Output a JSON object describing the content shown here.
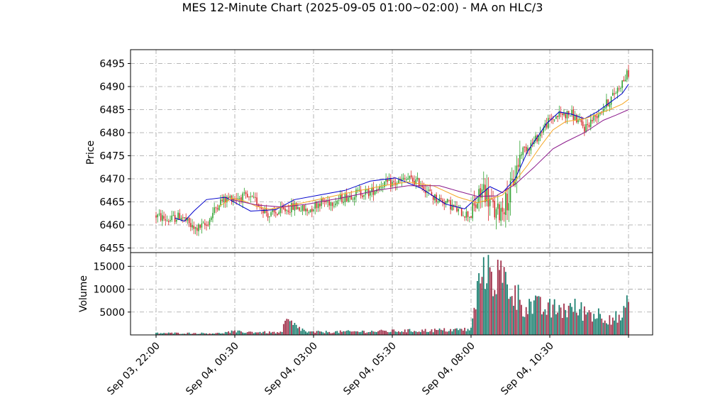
{
  "chart_data": {
    "type": "candlestick",
    "title": "MES 12-Minute Chart (2025-09-05 01:00~02:00) - MA on HLC/3",
    "colors": {
      "up": "#2ca02c",
      "down": "#d62728",
      "volume_up": "#1a7f6f",
      "volume_down": "#a0304a",
      "ma_fast": "#0000cc",
      "ma_mid": "#f5a623",
      "ma_slow": "#8b1a8b",
      "grid": "#a0a0a0"
    },
    "price_panel": {
      "ylabel": "Price",
      "ylim": [
        6454,
        6498
      ],
      "yticks": [
        6455,
        6460,
        6465,
        6470,
        6475,
        6480,
        6485,
        6490,
        6495
      ],
      "grid": true
    },
    "volume_panel": {
      "ylabel": "Volume",
      "ylim": [
        0,
        18000
      ],
      "yticks": [
        5000,
        10000,
        15000
      ],
      "ytick_labels": [
        "5000",
        "10000",
        "15000"
      ],
      "grid": true
    },
    "x_axis": {
      "tick_labels": [
        "Sep 03, 22:00",
        "Sep 04, 00:30",
        "Sep 04, 03:00",
        "Sep 04, 05:30",
        "Sep 04, 08:00",
        "Sep 04, 10:30",
        ""
      ],
      "tick_bar_index": [
        0,
        12.5,
        25,
        37.5,
        50,
        62.5,
        75
      ],
      "bar_count": 76
    },
    "price_anchors": [
      [
        0,
        6462
      ],
      [
        2,
        6461
      ],
      [
        4,
        6462
      ],
      [
        6,
        6459
      ],
      [
        8,
        6460
      ],
      [
        10,
        6465
      ],
      [
        12,
        6466
      ],
      [
        14,
        6466
      ],
      [
        16,
        6465
      ],
      [
        18,
        6462
      ],
      [
        20,
        6463
      ],
      [
        22,
        6464
      ],
      [
        24,
        6463
      ],
      [
        26,
        6465
      ],
      [
        28,
        6465
      ],
      [
        30,
        6466
      ],
      [
        32,
        6467
      ],
      [
        34,
        6467
      ],
      [
        36,
        6469
      ],
      [
        38,
        6469
      ],
      [
        40,
        6470
      ],
      [
        42,
        6469
      ],
      [
        44,
        6466
      ],
      [
        46,
        6465
      ],
      [
        48,
        6463
      ],
      [
        50,
        6462
      ],
      [
        52,
        6468
      ],
      [
        54,
        6462
      ],
      [
        56,
        6466
      ],
      [
        58,
        6476
      ],
      [
        60,
        6478
      ],
      [
        62,
        6482
      ],
      [
        64,
        6484
      ],
      [
        66,
        6484
      ],
      [
        68,
        6481
      ],
      [
        70,
        6484
      ],
      [
        72,
        6487
      ],
      [
        74,
        6491
      ],
      [
        75,
        6493
      ]
    ],
    "volume_anchors": [
      [
        0,
        400
      ],
      [
        10,
        350
      ],
      [
        12,
        700
      ],
      [
        20,
        500
      ],
      [
        20.5,
        3100
      ],
      [
        24,
        600
      ],
      [
        36,
        800
      ],
      [
        44,
        1000
      ],
      [
        50,
        1200
      ],
      [
        52,
        17000
      ],
      [
        54,
        13000
      ],
      [
        56,
        11000
      ],
      [
        58,
        7000
      ],
      [
        62,
        5500
      ],
      [
        66,
        5800
      ],
      [
        70,
        4500
      ],
      [
        72,
        4000
      ],
      [
        74,
        3500
      ],
      [
        75,
        7200
      ]
    ],
    "ma_fast": [
      [
        3,
        6461.5
      ],
      [
        4.5,
        6460.8
      ],
      [
        6,
        6463
      ],
      [
        8,
        6465.5
      ],
      [
        11,
        6466
      ],
      [
        13,
        6464.5
      ],
      [
        15,
        6463
      ],
      [
        19,
        6463.3
      ],
      [
        22,
        6465.5
      ],
      [
        26,
        6466.5
      ],
      [
        30,
        6467.5
      ],
      [
        34,
        6469.5
      ],
      [
        38,
        6470.2
      ],
      [
        42,
        6468
      ],
      [
        46,
        6464.5
      ],
      [
        49,
        6463.5
      ],
      [
        51,
        6466
      ],
      [
        53,
        6468.3
      ],
      [
        55,
        6467
      ],
      [
        57,
        6470
      ],
      [
        59,
        6476
      ],
      [
        62,
        6482
      ],
      [
        64,
        6484.5
      ],
      [
        66,
        6484
      ],
      [
        68,
        6483
      ],
      [
        70,
        6484.5
      ],
      [
        72,
        6486.5
      ],
      [
        74,
        6488.5
      ],
      [
        75,
        6490.5
      ]
    ],
    "ma_mid": [
      [
        10,
        6464
      ],
      [
        12,
        6465.8
      ],
      [
        14,
        6465.2
      ],
      [
        16,
        6464
      ],
      [
        18,
        6463.4
      ],
      [
        22,
        6464.4
      ],
      [
        26,
        6465.6
      ],
      [
        30,
        6466.8
      ],
      [
        36,
        6468.5
      ],
      [
        40,
        6469.3
      ],
      [
        44,
        6468.5
      ],
      [
        48,
        6466
      ],
      [
        51,
        6464.8
      ],
      [
        53,
        6465.6
      ],
      [
        55,
        6466.5
      ],
      [
        57,
        6469.5
      ],
      [
        59,
        6473
      ],
      [
        61,
        6477
      ],
      [
        63,
        6480.6
      ],
      [
        65,
        6482.4
      ],
      [
        68,
        6483
      ],
      [
        70,
        6484
      ],
      [
        72,
        6485
      ],
      [
        74,
        6486.2
      ],
      [
        75,
        6487.2
      ]
    ],
    "ma_slow": [
      [
        12,
        6465.5
      ],
      [
        16,
        6464.3
      ],
      [
        20,
        6463.9
      ],
      [
        24,
        6464.5
      ],
      [
        30,
        6466
      ],
      [
        35,
        6467.5
      ],
      [
        40,
        6468.5
      ],
      [
        45,
        6468.5
      ],
      [
        48,
        6467.3
      ],
      [
        51,
        6466.2
      ],
      [
        54,
        6466.3
      ],
      [
        57,
        6468.8
      ],
      [
        60,
        6472.5
      ],
      [
        63,
        6476.5
      ],
      [
        65,
        6478
      ],
      [
        68,
        6480
      ],
      [
        71,
        6482.7
      ],
      [
        73,
        6483.8
      ],
      [
        75,
        6485
      ]
    ]
  }
}
